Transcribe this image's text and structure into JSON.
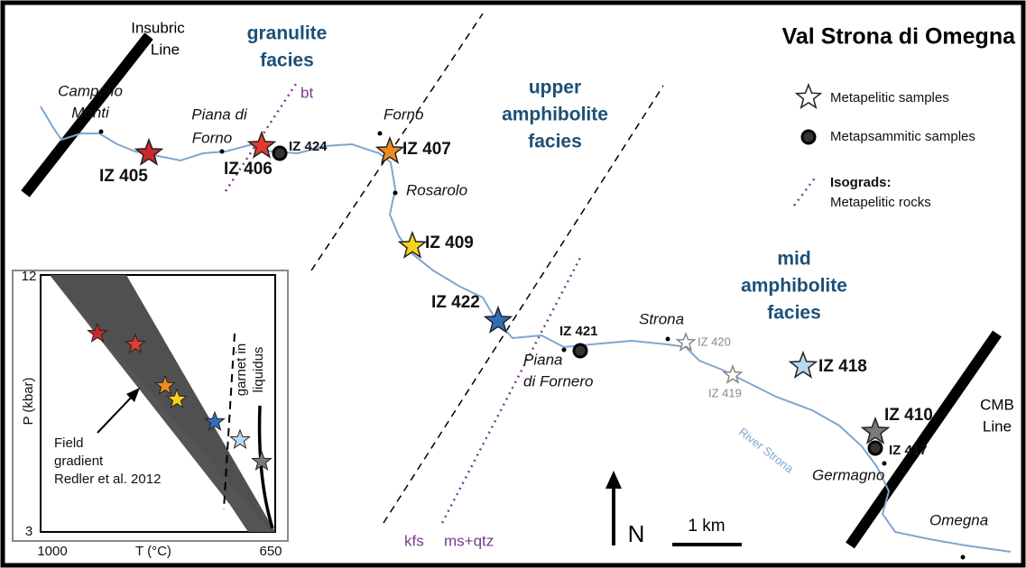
{
  "title": "Val Strona di Omegna",
  "zones": [
    {
      "lines": [
        "granulite",
        "facies"
      ]
    },
    {
      "lines": [
        "upper",
        "amphibolite",
        "facies"
      ]
    },
    {
      "lines": [
        "mid",
        "amphibolite",
        "facies"
      ]
    }
  ],
  "tectonic_lines": [
    {
      "lines": [
        "Insubric",
        "Line"
      ]
    },
    {
      "lines": [
        "CMB",
        "Line"
      ]
    }
  ],
  "places": [
    "Campello",
    "Monti",
    "Piana di",
    "Forno",
    "Forno",
    "Rosarolo",
    "Strona",
    "Piana",
    "di Fornero",
    "Germagno",
    "Omegna"
  ],
  "samples": [
    "IZ 405",
    "IZ 406",
    "IZ 424",
    "IZ 407",
    "IZ 409",
    "IZ 422",
    "IZ 421",
    "IZ 420",
    "IZ 419",
    "IZ 418",
    "IZ 410",
    "IZ 417"
  ],
  "isograd_labels": [
    "bt",
    "kfs",
    "ms+qtz"
  ],
  "river_label": "River Strona",
  "legend": [
    "Metapelitic samples",
    "Metapsammitic samples",
    "Isograds:",
    "Metapelitic rocks"
  ],
  "north": "N",
  "scale": "1 km",
  "inset": {
    "y_label": "P (kbar)",
    "x_label": "T (°C)",
    "y_ticks": [
      "12",
      "3"
    ],
    "x_ticks": [
      "1000",
      "650"
    ],
    "annotations": [
      "garnet in",
      "liquidus"
    ],
    "gradient_label": [
      "Field",
      "gradient",
      "Redler et al. 2012"
    ]
  }
}
